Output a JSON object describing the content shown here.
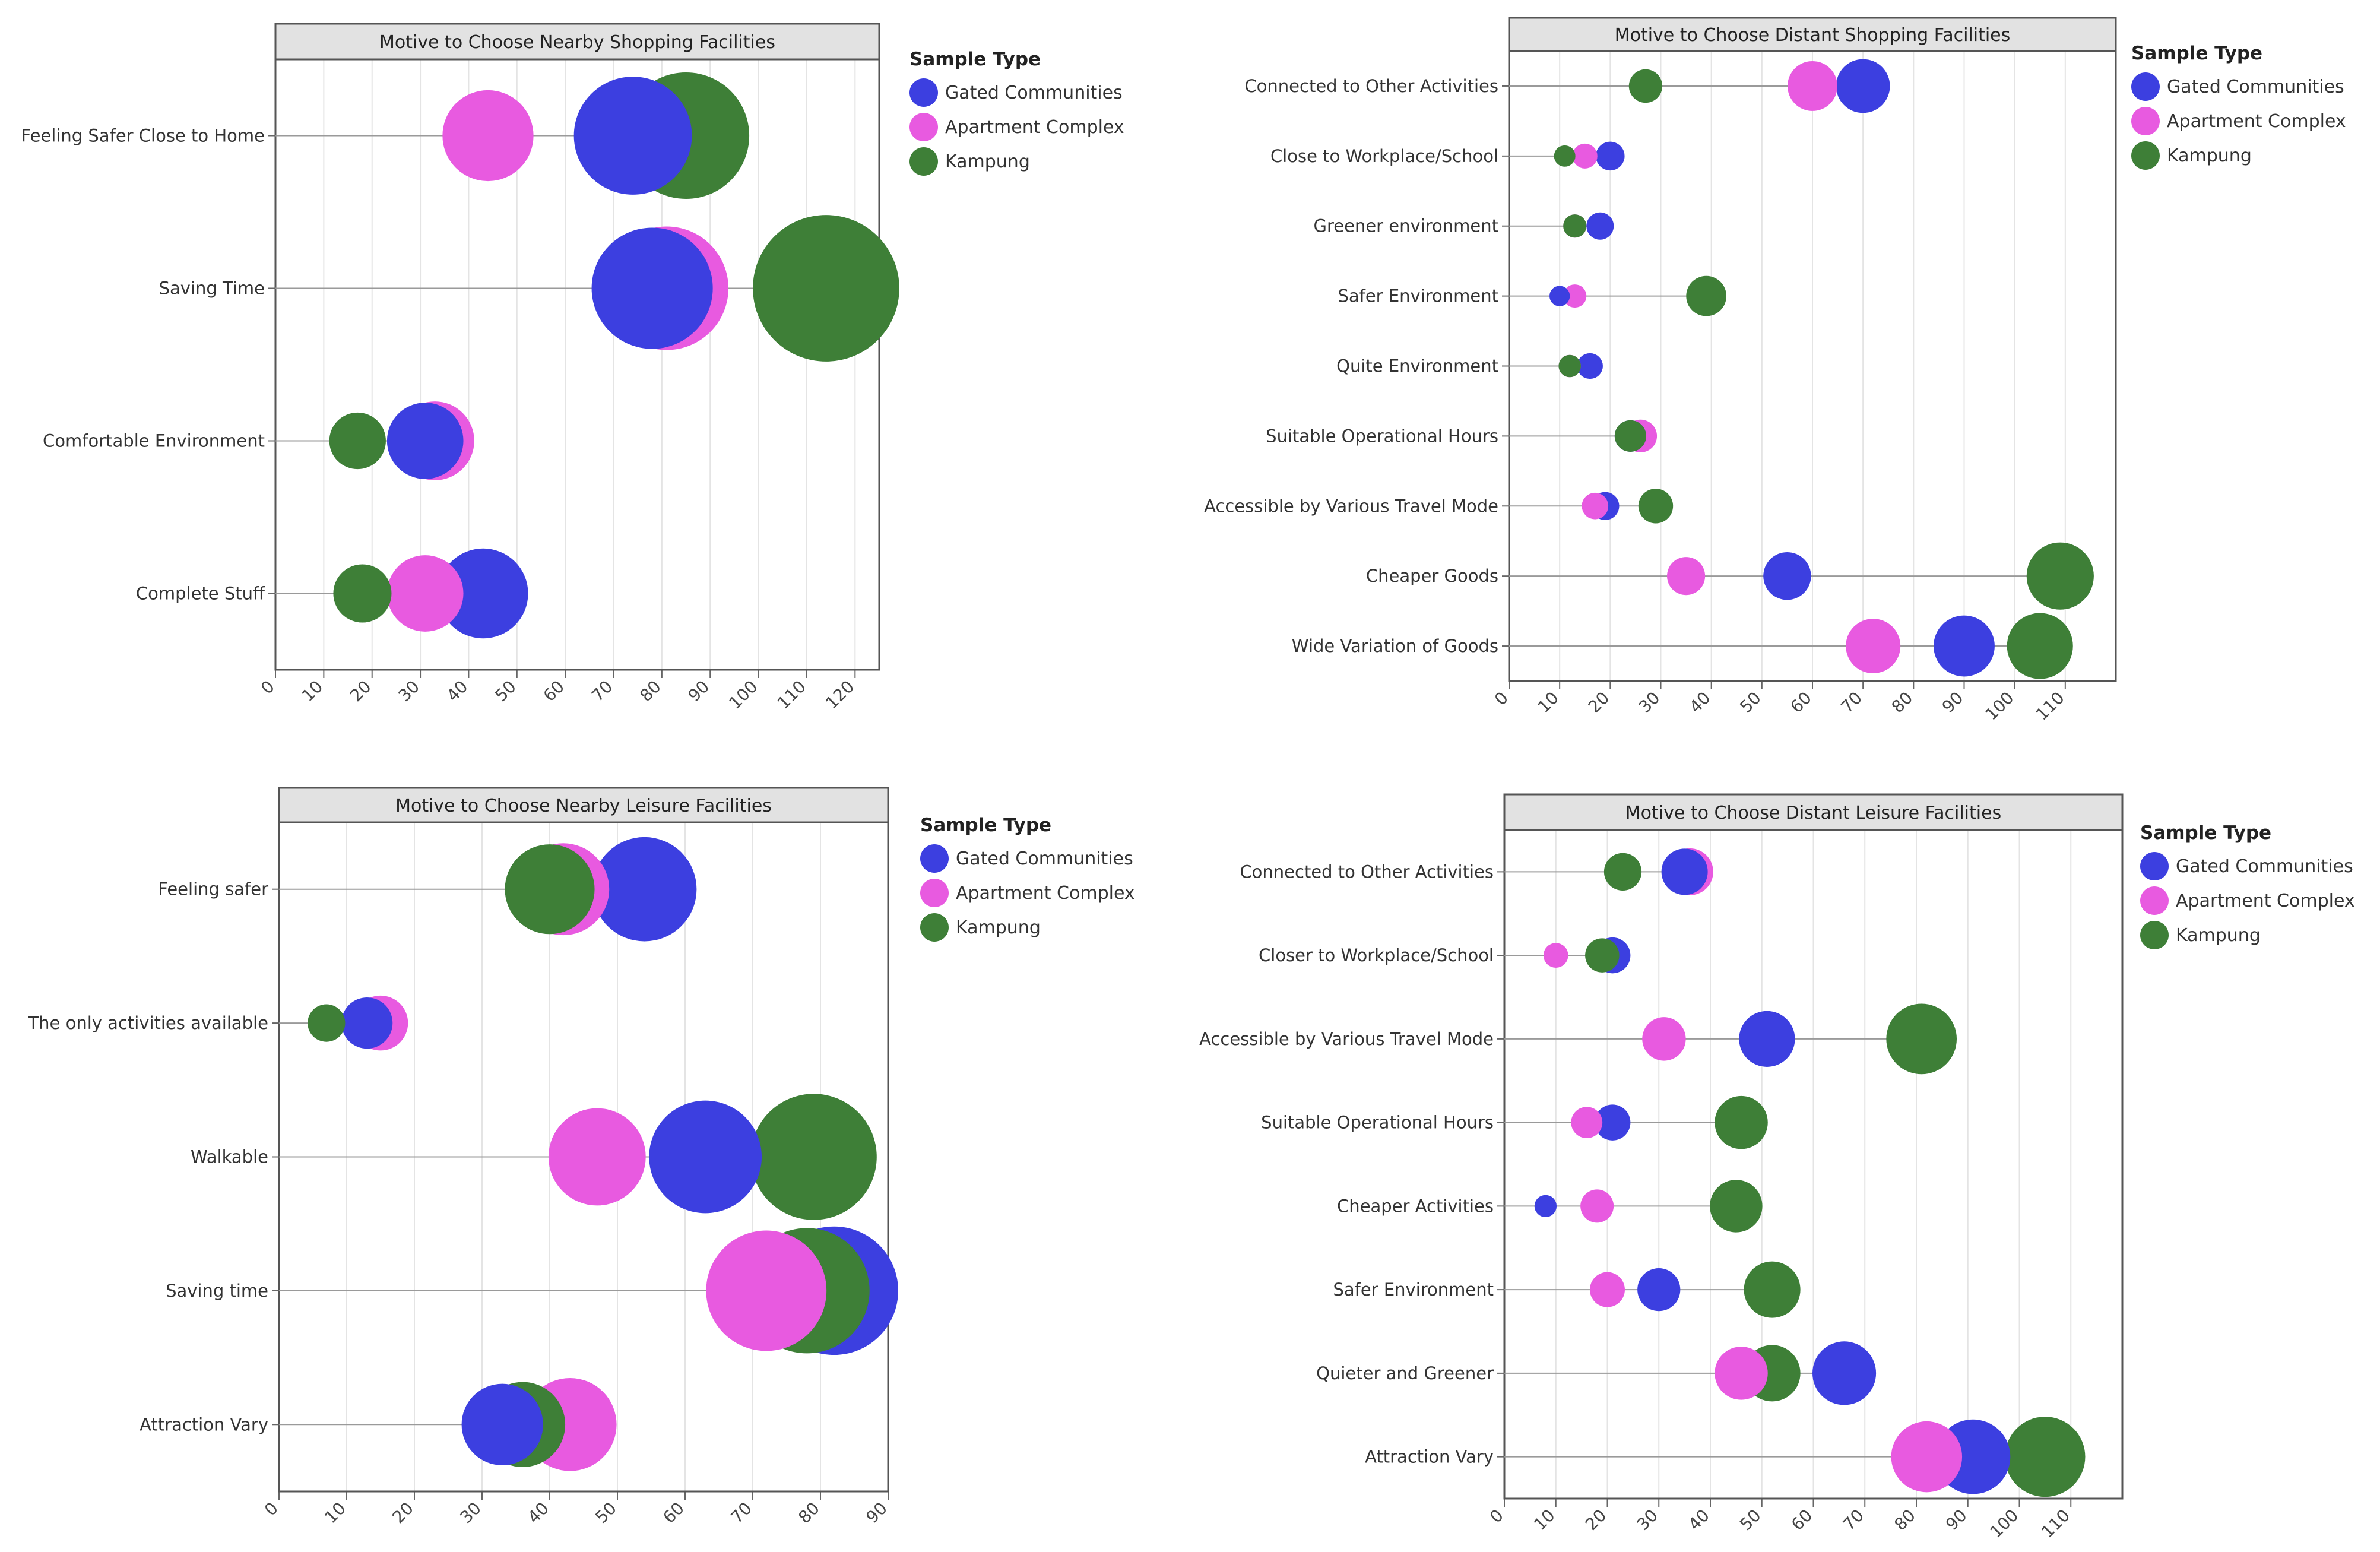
{
  "colors": {
    "gated": "#3c3fe0",
    "apartment": "#e85ae0",
    "kampung": "#3e7f37",
    "header_bg": "#e2e2e2",
    "grid": "#e4e4e4",
    "stem": "#9a9a9a"
  },
  "legend": {
    "title": "Sample Type",
    "items": [
      "Gated Communities",
      "Apartment Complex",
      "Kampung"
    ]
  },
  "chart_data": [
    {
      "type": "scatter",
      "title": "Motive to Choose Nearby Shopping Facilities",
      "xlim": [
        0,
        125
      ],
      "xticks": [
        "0",
        "10",
        "20",
        "30",
        "40",
        "50",
        "60",
        "70",
        "80",
        "90",
        "100",
        "110",
        "120"
      ],
      "categories": [
        "Feeling Safer Close to Home",
        "Saving Time",
        "Comfortable Environment",
        "Complete Stuff"
      ],
      "series": [
        {
          "name": "Gated Communities",
          "values": [
            74,
            78,
            31,
            43
          ]
        },
        {
          "name": "Apartment Complex",
          "values": [
            44,
            81,
            33,
            31
          ]
        },
        {
          "name": "Kampung",
          "values": [
            85,
            114,
            17,
            18
          ]
        }
      ]
    },
    {
      "type": "scatter",
      "title": "Motive to Choose Distant Shopping Facilities",
      "xlim": [
        0,
        120
      ],
      "xticks": [
        "0",
        "10",
        "20",
        "30",
        "40",
        "50",
        "60",
        "70",
        "80",
        "90",
        "100",
        "110"
      ],
      "categories": [
        "Connected to Other Activities",
        "Close to Workplace/School",
        "Greener environment",
        "Safer Environment",
        "Quite Environment",
        "Suitable Operational Hours",
        "Accessible by Various Travel Mode",
        "Cheaper Goods",
        "Wide Variation of Goods"
      ],
      "series": [
        {
          "name": "Gated Communities",
          "values": [
            70,
            20,
            18,
            10,
            16,
            24,
            19,
            55,
            90
          ]
        },
        {
          "name": "Apartment Complex",
          "values": [
            60,
            15,
            13,
            13,
            12,
            26,
            17,
            35,
            72
          ]
        },
        {
          "name": "Kampung",
          "values": [
            27,
            11,
            13,
            39,
            12,
            24,
            29,
            109,
            105
          ]
        }
      ]
    },
    {
      "type": "scatter",
      "title": "Motive to Choose Nearby Leisure Facilities",
      "xlim": [
        0,
        90
      ],
      "xticks": [
        "0",
        "10",
        "20",
        "30",
        "40",
        "50",
        "60",
        "70",
        "80",
        "90"
      ],
      "categories": [
        "Feeling safer",
        "The only activities available",
        "Walkable",
        "Saving time",
        "Attraction Vary"
      ],
      "series": [
        {
          "name": "Gated Communities",
          "values": [
            54,
            13,
            63,
            82,
            33
          ]
        },
        {
          "name": "Apartment Complex",
          "values": [
            42,
            15,
            47,
            72,
            43
          ]
        },
        {
          "name": "Kampung",
          "values": [
            40,
            7,
            79,
            78,
            36
          ]
        }
      ]
    },
    {
      "type": "scatter",
      "title": "Motive to Choose Distant Leisure Facilities",
      "xlim": [
        0,
        120
      ],
      "xticks": [
        "0",
        "10",
        "20",
        "30",
        "40",
        "50",
        "60",
        "70",
        "80",
        "90",
        "100",
        "110"
      ],
      "categories": [
        "Connected to Other Activities",
        "Closer to Workplace/School",
        "Accessible by Various Travel Mode",
        "Suitable Operational Hours",
        "Cheaper Activities",
        "Safer Environment",
        "Quieter and Greener",
        "Attraction Vary"
      ],
      "series": [
        {
          "name": "Gated Communities",
          "values": [
            35,
            21,
            51,
            21,
            8,
            30,
            66,
            91
          ]
        },
        {
          "name": "Apartment Complex",
          "values": [
            36,
            10,
            31,
            16,
            18,
            20,
            46,
            82
          ]
        },
        {
          "name": "Kampung",
          "values": [
            23,
            19,
            81,
            46,
            45,
            52,
            52,
            105
          ]
        }
      ]
    }
  ]
}
